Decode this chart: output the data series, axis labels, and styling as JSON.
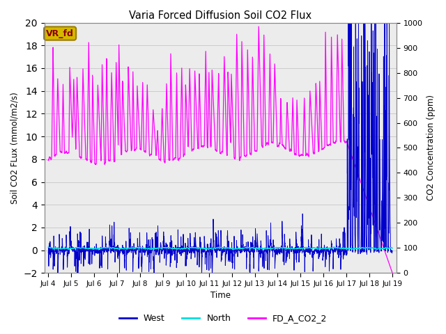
{
  "title": "Varia Forced Diffusion Soil CO2 Flux",
  "ylabel_left": "Soil CO2 FLux (mmol/m2/s)",
  "ylabel_right": "CO2 Concentration (ppm)",
  "xlabel": "Time",
  "ylim_left": [
    -2,
    20
  ],
  "ylim_right": [
    0,
    1000
  ],
  "yticks_left": [
    -2,
    0,
    2,
    4,
    6,
    8,
    10,
    12,
    14,
    16,
    18,
    20
  ],
  "yticks_right": [
    0,
    100,
    200,
    300,
    400,
    500,
    600,
    700,
    800,
    900,
    1000
  ],
  "label_box_text": "VR_fd",
  "label_box_color": "#d4b800",
  "label_box_text_color": "#8b0000",
  "west_color": "#0000cc",
  "north_color": "#00dddd",
  "co2_color": "#ff00ff",
  "background_color": "#ffffff",
  "grid_color": "#cccccc",
  "xmin_day": 3.83,
  "xmax_day": 19.17,
  "xtick_days": [
    4,
    5,
    6,
    7,
    8,
    9,
    10,
    11,
    12,
    13,
    14,
    15,
    16,
    17,
    18,
    19
  ],
  "xtick_labels": [
    "Jul 4",
    "Jul 5",
    "Jul 6",
    "Jul 7",
    "Jul 8",
    "Jul 9",
    "Jul 10",
    "Jul 11",
    "Jul 12",
    "Jul 13",
    "Jul 14",
    "Jul 15",
    "Jul 16",
    "Jul 17",
    "Jul 18",
    "Jul 19"
  ],
  "band_color": "#e0e0e0",
  "band_alpha": 0.6
}
